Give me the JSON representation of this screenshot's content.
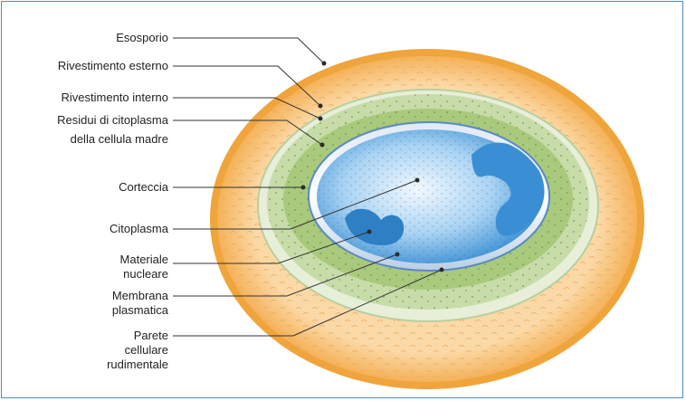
{
  "labels": {
    "esosporio": "Esosporio",
    "rivestimento_esterno": "Rivestimento esterno",
    "rivestimento_interno": "Rivestimento interno",
    "residui": [
      "Residui di citoplasma",
      "della cellula madre"
    ],
    "corteccia": "Corteccia",
    "citoplasma": "Citoplasma",
    "materiale_nucleare": [
      "Materiale",
      "nucleare"
    ],
    "membrana_plasmatica": [
      "Membrana",
      "plasmatica"
    ],
    "parete_cellulare": [
      "Parete",
      "cellulare",
      "rudimentale"
    ]
  },
  "colors": {
    "frame_border": "#4a8fc4",
    "exosporium": "#f0a43c",
    "exosporium_fill": "#f8c98a",
    "coat": "#d9e7c4",
    "cortex": "#a9c97c",
    "membrane": "#e8eef7",
    "core": "#3f93d6",
    "leader_line": "#333333",
    "dot": "#2a2a2a"
  }
}
